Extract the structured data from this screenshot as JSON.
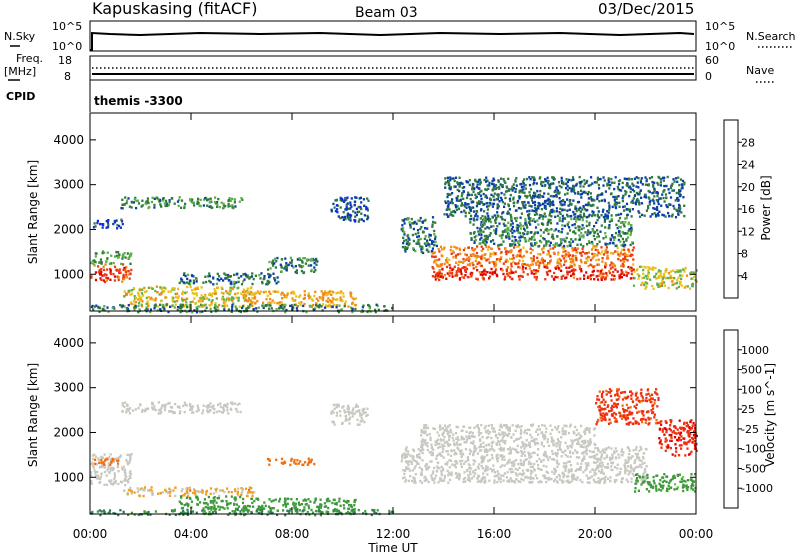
{
  "header": {
    "station": "Kapuskasing (fitACF)",
    "beam": "Beam 03",
    "date": "03/Dec/2015"
  },
  "noise_panel": {
    "left_label": "N.Sky",
    "left_ticks": [
      "10^5",
      "10^0"
    ],
    "right_label": "N.Search",
    "right_ticks": [
      "10^5",
      "10^0"
    ]
  },
  "freq_panel": {
    "left_label_1": "Freq.",
    "left_label_2": "[MHz]",
    "left_ticks": [
      "18",
      "8"
    ],
    "right_label": "Nave",
    "right_ticks": [
      "60",
      "0"
    ],
    "cpid_label": "CPID",
    "cpid_value": "themis -3300"
  },
  "chart_data": [
    {
      "type": "heatmap",
      "title": "",
      "xlabel": "Time UT",
      "ylabel": "Slant Range [km]",
      "x_ticks": [
        "00:00",
        "04:00",
        "08:00",
        "12:00",
        "16:00",
        "20:00",
        "00:00"
      ],
      "y_ticks": [
        "1000",
        "2000",
        "3000",
        "4000"
      ],
      "xlim_hours": [
        0,
        24
      ],
      "ylim_km": [
        180,
        4600
      ],
      "colorbar": {
        "label": "Power [dB]",
        "ticks": [
          "4",
          "8",
          "12",
          "16",
          "20",
          "24",
          "28"
        ],
        "colors": [
          "#1a1aff",
          "#0a3ea8",
          "#2f7a3c",
          "#5fb04a",
          "#e8c21a",
          "#f08a1a",
          "#ee3a10",
          "#e00000"
        ]
      },
      "regions": [
        {
          "t": [
            0.0,
            1.6
          ],
          "r": [
            850,
            1250
          ],
          "v": 26
        },
        {
          "t": [
            0.0,
            1.6
          ],
          "r": [
            1250,
            1550
          ],
          "v": 12
        },
        {
          "t": [
            0.1,
            1.3
          ],
          "r": [
            2050,
            2250
          ],
          "v": 6
        },
        {
          "t": [
            1.2,
            6.0
          ],
          "r": [
            2500,
            2750
          ],
          "v": 11
        },
        {
          "t": [
            1.3,
            6.5
          ],
          "r": [
            300,
            750
          ],
          "v": 18
        },
        {
          "t": [
            3.5,
            7.5
          ],
          "r": [
            800,
            1050
          ],
          "v": 9
        },
        {
          "t": [
            6.0,
            10.5
          ],
          "r": [
            300,
            650
          ],
          "v": 20
        },
        {
          "t": [
            7.0,
            9.0
          ],
          "r": [
            1050,
            1400
          ],
          "v": 10
        },
        {
          "t": [
            9.5,
            11.0
          ],
          "r": [
            2200,
            2750
          ],
          "v": 7
        },
        {
          "t": [
            12.3,
            13.7
          ],
          "r": [
            1500,
            2300
          ],
          "v": 9
        },
        {
          "t": [
            13.5,
            21.5
          ],
          "r": [
            1200,
            1650
          ],
          "v": 23
        },
        {
          "t": [
            13.5,
            21.5
          ],
          "r": [
            900,
            1200
          ],
          "v": 27
        },
        {
          "t": [
            15.0,
            21.5
          ],
          "r": [
            1650,
            2300
          ],
          "v": 10
        },
        {
          "t": [
            14.0,
            23.5
          ],
          "r": [
            2300,
            3200
          ],
          "v": 8
        },
        {
          "t": [
            21.5,
            24.0
          ],
          "r": [
            700,
            1200
          ],
          "v": 17
        },
        {
          "t": [
            0.0,
            12.0
          ],
          "r": [
            180,
            350
          ],
          "v": 10
        }
      ]
    },
    {
      "type": "heatmap",
      "title": "",
      "xlabel": "Time UT",
      "ylabel": "Slant Range [km]",
      "x_ticks": [
        "00:00",
        "04:00",
        "08:00",
        "12:00",
        "16:00",
        "20:00",
        "00:00"
      ],
      "y_ticks": [
        "1000",
        "2000",
        "3000",
        "4000"
      ],
      "xlim_hours": [
        0,
        24
      ],
      "ylim_km": [
        180,
        4600
      ],
      "colorbar": {
        "label": "Velocity [m s^-1]",
        "ticks": [
          "1000",
          "500",
          "100",
          "25",
          "-25",
          "-100",
          "-500",
          "-1000"
        ],
        "colors": [
          "#1a3aa8",
          "#2f7a5a",
          "#3f9a3c",
          "#6fc84a",
          "#c8c8c0",
          "#f0a020",
          "#f07010",
          "#ee3010",
          "#e00000"
        ]
      },
      "regions": [
        {
          "t": [
            0.0,
            1.6
          ],
          "r": [
            850,
            1550
          ],
          "v": 0
        },
        {
          "t": [
            0.0,
            1.2
          ],
          "r": [
            1300,
            1450
          ],
          "v": -150
        },
        {
          "t": [
            1.2,
            6.0
          ],
          "r": [
            2450,
            2700
          ],
          "v": 0
        },
        {
          "t": [
            1.3,
            6.5
          ],
          "r": [
            600,
            800
          ],
          "v": -30
        },
        {
          "t": [
            3.5,
            6.0
          ],
          "r": [
            300,
            600
          ],
          "v": 150
        },
        {
          "t": [
            6.0,
            10.5
          ],
          "r": [
            250,
            550
          ],
          "v": 200
        },
        {
          "t": [
            7.0,
            9.0
          ],
          "r": [
            1300,
            1450
          ],
          "v": -120
        },
        {
          "t": [
            9.5,
            11.0
          ],
          "r": [
            2200,
            2650
          ],
          "v": 0
        },
        {
          "t": [
            12.3,
            22.0
          ],
          "r": [
            900,
            1700
          ],
          "v": 0
        },
        {
          "t": [
            13.0,
            20.0
          ],
          "r": [
            1700,
            2200
          ],
          "v": 0
        },
        {
          "t": [
            20.0,
            22.5
          ],
          "r": [
            2200,
            3000
          ],
          "v": -400
        },
        {
          "t": [
            21.5,
            24.0
          ],
          "r": [
            700,
            1100
          ],
          "v": 120
        },
        {
          "t": [
            22.5,
            24.0
          ],
          "r": [
            1500,
            2300
          ],
          "v": -600
        },
        {
          "t": [
            0.0,
            12.0
          ],
          "r": [
            180,
            300
          ],
          "v": 300
        }
      ]
    }
  ]
}
